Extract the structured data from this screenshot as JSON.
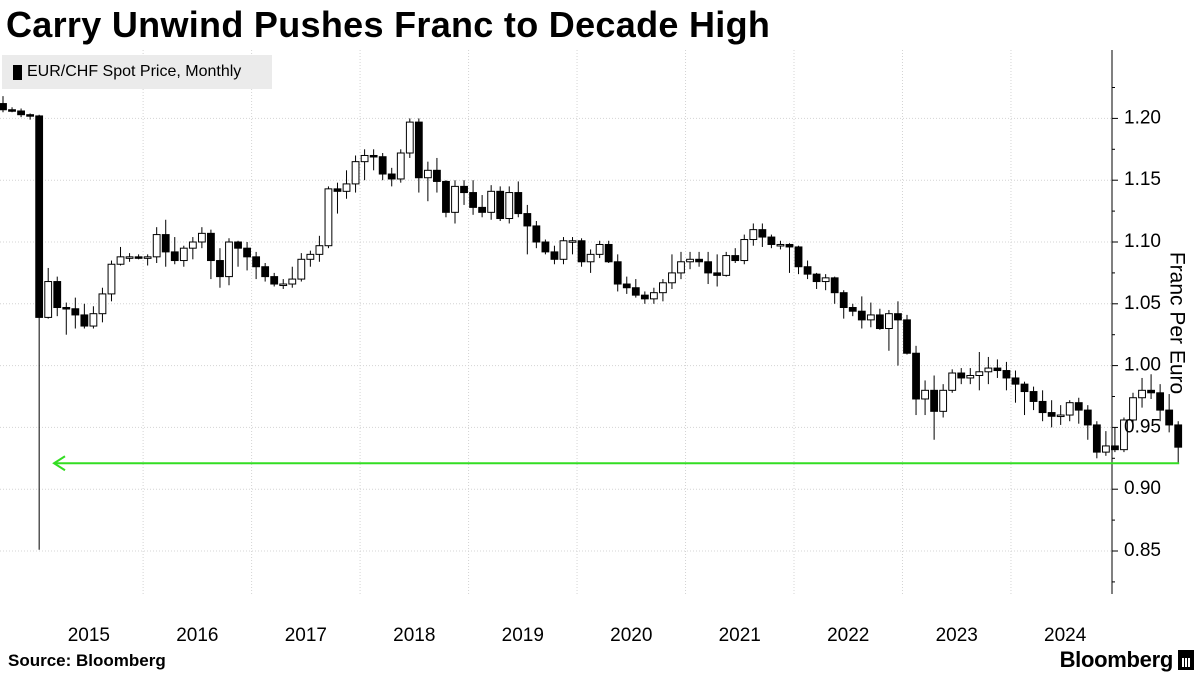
{
  "title": "Carry Unwind Pushes Franc to Decade High",
  "source": "Source: Bloomberg",
  "brand": "Bloomberg",
  "chart_data": {
    "type": "candlestick",
    "ylabel": "Franc Per Euro",
    "ylim": [
      0.82,
      1.25
    ],
    "y_ticks": [
      "0.85",
      "0.90",
      "0.95",
      "1.00",
      "1.05",
      "1.10",
      "1.15",
      "1.20"
    ],
    "x_labels": [
      "2015",
      "2016",
      "2017",
      "2018",
      "2019",
      "2020",
      "2021",
      "2022",
      "2023",
      "2024"
    ],
    "grid": true,
    "legend": {
      "position": "top-left",
      "entries": [
        "EUR/CHF Spot Price, Monthly"
      ]
    },
    "series": [
      {
        "name": "EUR/CHF Spot Price, Monthly",
        "frequency": "monthly",
        "start": "2014-09",
        "ohlc": [
          [
            1.212,
            1.218,
            1.205,
            1.207
          ],
          [
            1.207,
            1.209,
            1.205,
            1.206
          ],
          [
            1.206,
            1.208,
            1.201,
            1.203
          ],
          [
            1.203,
            1.204,
            1.199,
            1.202
          ],
          [
            1.202,
            1.203,
            0.851,
            1.039
          ],
          [
            1.039,
            1.079,
            1.038,
            1.068
          ],
          [
            1.068,
            1.072,
            1.04,
            1.047
          ],
          [
            1.047,
            1.051,
            1.025,
            1.046
          ],
          [
            1.046,
            1.055,
            1.03,
            1.041
          ],
          [
            1.041,
            1.05,
            1.03,
            1.032
          ],
          [
            1.032,
            1.048,
            1.03,
            1.042
          ],
          [
            1.042,
            1.063,
            1.035,
            1.058
          ],
          [
            1.058,
            1.085,
            1.052,
            1.082
          ],
          [
            1.082,
            1.096,
            1.081,
            1.088
          ],
          [
            1.088,
            1.091,
            1.084,
            1.088
          ],
          [
            1.088,
            1.09,
            1.086,
            1.087
          ],
          [
            1.087,
            1.09,
            1.081,
            1.088
          ],
          [
            1.088,
            1.112,
            1.083,
            1.106
          ],
          [
            1.106,
            1.118,
            1.08,
            1.092
          ],
          [
            1.092,
            1.104,
            1.082,
            1.085
          ],
          [
            1.085,
            1.097,
            1.08,
            1.095
          ],
          [
            1.095,
            1.104,
            1.086,
            1.1
          ],
          [
            1.1,
            1.112,
            1.095,
            1.107
          ],
          [
            1.107,
            1.11,
            1.07,
            1.085
          ],
          [
            1.085,
            1.095,
            1.063,
            1.072
          ],
          [
            1.072,
            1.103,
            1.065,
            1.1
          ],
          [
            1.1,
            1.101,
            1.08,
            1.095
          ],
          [
            1.095,
            1.1,
            1.077,
            1.088
          ],
          [
            1.088,
            1.092,
            1.07,
            1.08
          ],
          [
            1.08,
            1.083,
            1.068,
            1.072
          ],
          [
            1.072,
            1.075,
            1.064,
            1.066
          ],
          [
            1.066,
            1.07,
            1.062,
            1.066
          ],
          [
            1.066,
            1.08,
            1.063,
            1.07
          ],
          [
            1.07,
            1.091,
            1.068,
            1.086
          ],
          [
            1.086,
            1.093,
            1.08,
            1.09
          ],
          [
            1.09,
            1.105,
            1.084,
            1.097
          ],
          [
            1.097,
            1.145,
            1.095,
            1.143
          ],
          [
            1.143,
            1.148,
            1.123,
            1.141
          ],
          [
            1.141,
            1.158,
            1.135,
            1.147
          ],
          [
            1.147,
            1.17,
            1.14,
            1.165
          ],
          [
            1.165,
            1.175,
            1.15,
            1.17
          ],
          [
            1.17,
            1.175,
            1.158,
            1.169
          ],
          [
            1.169,
            1.172,
            1.15,
            1.155
          ],
          [
            1.155,
            1.16,
            1.145,
            1.151
          ],
          [
            1.151,
            1.175,
            1.148,
            1.172
          ],
          [
            1.172,
            1.2,
            1.168,
            1.197
          ],
          [
            1.197,
            1.2,
            1.14,
            1.152
          ],
          [
            1.152,
            1.165,
            1.133,
            1.158
          ],
          [
            1.158,
            1.168,
            1.14,
            1.149
          ],
          [
            1.149,
            1.15,
            1.12,
            1.124
          ],
          [
            1.124,
            1.15,
            1.115,
            1.145
          ],
          [
            1.145,
            1.15,
            1.13,
            1.14
          ],
          [
            1.14,
            1.15,
            1.122,
            1.128
          ],
          [
            1.128,
            1.138,
            1.12,
            1.124
          ],
          [
            1.124,
            1.146,
            1.118,
            1.141
          ],
          [
            1.141,
            1.145,
            1.117,
            1.119
          ],
          [
            1.119,
            1.145,
            1.115,
            1.14
          ],
          [
            1.14,
            1.149,
            1.12,
            1.123
          ],
          [
            1.123,
            1.13,
            1.09,
            1.113
          ],
          [
            1.113,
            1.117,
            1.095,
            1.1
          ],
          [
            1.1,
            1.102,
            1.09,
            1.092
          ],
          [
            1.092,
            1.097,
            1.082,
            1.086
          ],
          [
            1.086,
            1.104,
            1.082,
            1.101
          ],
          [
            1.101,
            1.104,
            1.09,
            1.101
          ],
          [
            1.101,
            1.103,
            1.08,
            1.084
          ],
          [
            1.084,
            1.094,
            1.075,
            1.09
          ],
          [
            1.09,
            1.101,
            1.087,
            1.098
          ],
          [
            1.098,
            1.101,
            1.083,
            1.084
          ],
          [
            1.084,
            1.09,
            1.06,
            1.066
          ],
          [
            1.066,
            1.072,
            1.058,
            1.063
          ],
          [
            1.063,
            1.07,
            1.055,
            1.057
          ],
          [
            1.057,
            1.06,
            1.05,
            1.054
          ],
          [
            1.054,
            1.063,
            1.05,
            1.059
          ],
          [
            1.059,
            1.07,
            1.052,
            1.067
          ],
          [
            1.067,
            1.09,
            1.062,
            1.075
          ],
          [
            1.075,
            1.092,
            1.07,
            1.084
          ],
          [
            1.084,
            1.092,
            1.078,
            1.086
          ],
          [
            1.086,
            1.092,
            1.08,
            1.084
          ],
          [
            1.084,
            1.092,
            1.066,
            1.075
          ],
          [
            1.075,
            1.09,
            1.064,
            1.073
          ],
          [
            1.073,
            1.092,
            1.072,
            1.089
          ],
          [
            1.089,
            1.095,
            1.083,
            1.085
          ],
          [
            1.085,
            1.106,
            1.082,
            1.102
          ],
          [
            1.102,
            1.115,
            1.097,
            1.11
          ],
          [
            1.11,
            1.115,
            1.096,
            1.104
          ],
          [
            1.104,
            1.106,
            1.095,
            1.098
          ],
          [
            1.098,
            1.101,
            1.094,
            1.098
          ],
          [
            1.098,
            1.099,
            1.075,
            1.096
          ],
          [
            1.096,
            1.097,
            1.074,
            1.08
          ],
          [
            1.08,
            1.085,
            1.07,
            1.074
          ],
          [
            1.074,
            1.075,
            1.062,
            1.068
          ],
          [
            1.068,
            1.074,
            1.061,
            1.071
          ],
          [
            1.071,
            1.072,
            1.05,
            1.059
          ],
          [
            1.059,
            1.061,
            1.038,
            1.047
          ],
          [
            1.047,
            1.05,
            1.04,
            1.044
          ],
          [
            1.044,
            1.056,
            1.03,
            1.037
          ],
          [
            1.037,
            1.051,
            1.031,
            1.041
          ],
          [
            1.041,
            1.046,
            1.029,
            1.03
          ],
          [
            1.03,
            1.045,
            1.012,
            1.042
          ],
          [
            1.042,
            1.052,
            1.0,
            1.037
          ],
          [
            1.037,
            1.041,
            1.009,
            1.01
          ],
          [
            1.01,
            1.016,
            0.96,
            0.973
          ],
          [
            0.973,
            0.988,
            0.96,
            0.98
          ],
          [
            0.98,
            0.992,
            0.94,
            0.963
          ],
          [
            0.963,
            0.985,
            0.958,
            0.98
          ],
          [
            0.98,
            0.997,
            0.978,
            0.994
          ],
          [
            0.994,
            0.998,
            0.985,
            0.99
          ],
          [
            0.99,
            0.998,
            0.985,
            0.992
          ],
          [
            0.992,
            1.011,
            0.98,
            0.995
          ],
          [
            0.995,
            1.007,
            0.985,
            0.998
          ],
          [
            0.998,
            1.005,
            0.99,
            0.996
          ],
          [
            0.996,
            1.003,
            0.98,
            0.99
          ],
          [
            0.99,
            0.996,
            0.97,
            0.985
          ],
          [
            0.985,
            0.987,
            0.96,
            0.979
          ],
          [
            0.979,
            0.983,
            0.964,
            0.971
          ],
          [
            0.971,
            0.98,
            0.955,
            0.962
          ],
          [
            0.962,
            0.972,
            0.95,
            0.959
          ],
          [
            0.959,
            0.968,
            0.952,
            0.96
          ],
          [
            0.96,
            0.972,
            0.955,
            0.97
          ],
          [
            0.97,
            0.974,
            0.953,
            0.964
          ],
          [
            0.964,
            0.968,
            0.94,
            0.952
          ],
          [
            0.952,
            0.955,
            0.925,
            0.93
          ],
          [
            0.93,
            0.947,
            0.927,
            0.935
          ],
          [
            0.935,
            0.95,
            0.93,
            0.932
          ],
          [
            0.932,
            0.958,
            0.93,
            0.956
          ],
          [
            0.956,
            0.978,
            0.95,
            0.974
          ],
          [
            0.974,
            0.99,
            0.966,
            0.98
          ],
          [
            0.98,
            0.993,
            0.973,
            0.978
          ],
          [
            0.978,
            0.985,
            0.955,
            0.964
          ],
          [
            0.964,
            0.977,
            0.946,
            0.952
          ],
          [
            0.952,
            0.955,
            0.921,
            0.934
          ]
        ]
      }
    ],
    "annotations": [
      {
        "type": "horizontal-arrow",
        "color": "#33dd22",
        "y": 0.921,
        "direction": "left"
      }
    ],
    "colors": {
      "up_body": "#ffffff",
      "down_body": "#000000",
      "wick": "#000000",
      "grid": "#d4d4d4"
    }
  }
}
